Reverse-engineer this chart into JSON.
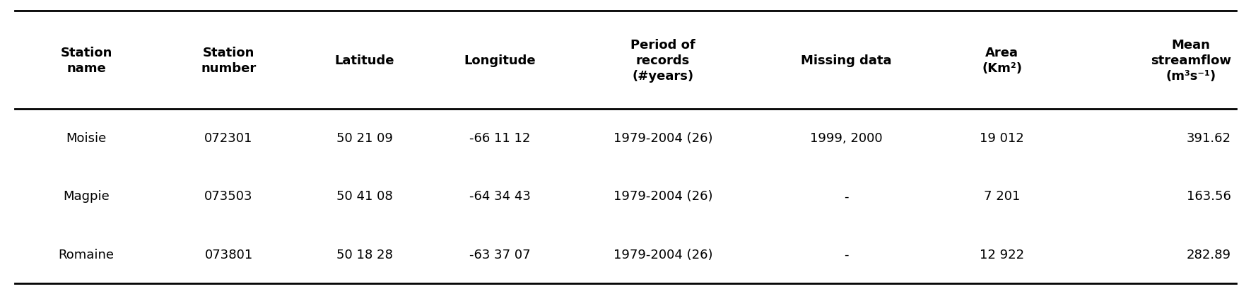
{
  "columns": [
    "Station\nname",
    "Station\nnumber",
    "Latitude",
    "Longitude",
    "Period of\nrecords\n(#years)",
    "Missing data",
    "Area\n(Km²)",
    "Mean\nstreamflow\n(m³s⁻¹)"
  ],
  "rows": [
    [
      "Moisie",
      "072301",
      "50 21 09",
      "-66 11 12",
      "1979-2004 (26)",
      "1999, 2000",
      "19 012",
      "391.62"
    ],
    [
      "Magpie",
      "073503",
      "50 41 08",
      "-64 34 43",
      "1979-2004 (26)",
      "-",
      "7 201",
      "163.56"
    ],
    [
      "Romaine",
      "073801",
      "50 18 28",
      "-63 37 07",
      "1979-2004 (26)",
      "-",
      "12 922",
      "282.89"
    ]
  ],
  "col_weights": [
    1.05,
    1.05,
    0.95,
    1.05,
    1.35,
    1.35,
    0.95,
    1.25
  ],
  "col_aligns": [
    "center",
    "center",
    "center",
    "center",
    "center",
    "center",
    "center",
    "right"
  ],
  "header_fontsize": 13,
  "row_fontsize": 13,
  "bg_color": "#ffffff",
  "line_color": "#000000",
  "text_color": "#000000"
}
